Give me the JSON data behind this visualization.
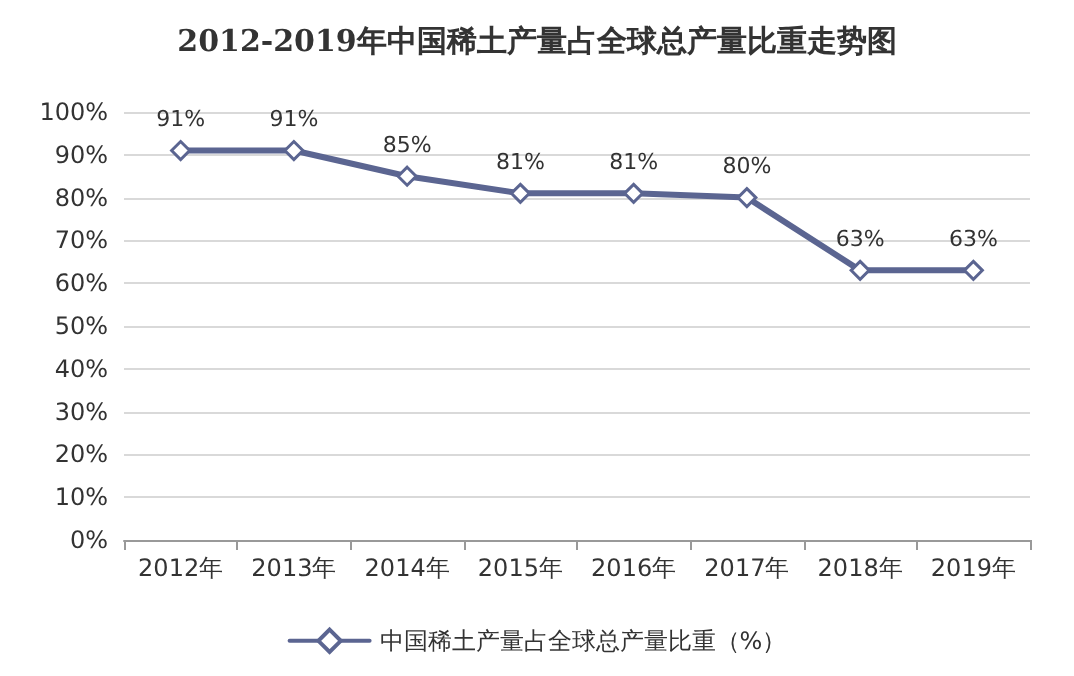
{
  "chart_data": {
    "type": "line",
    "title": "2012-2019年中国稀土产量占全球总产量比重走势图",
    "categories": [
      "2012年",
      "2013年",
      "2014年",
      "2015年",
      "2016年",
      "2017年",
      "2018年",
      "2019年"
    ],
    "series": [
      {
        "name": "中国稀土产量占全球总产量比重（%）",
        "color": "#5b6591",
        "values": [
          91,
          91,
          85,
          81,
          81,
          80,
          63,
          63
        ],
        "value_labels": [
          "91%",
          "91%",
          "85%",
          "81%",
          "81%",
          "80%",
          "63%",
          "63%"
        ]
      }
    ],
    "ylim": [
      0,
      100
    ],
    "yticks": [
      {
        "value": 0,
        "label": "0%"
      },
      {
        "value": 10,
        "label": "10%"
      },
      {
        "value": 20,
        "label": "20%"
      },
      {
        "value": 30,
        "label": "30%"
      },
      {
        "value": 40,
        "label": "40%"
      },
      {
        "value": 50,
        "label": "50%"
      },
      {
        "value": 60,
        "label": "60%"
      },
      {
        "value": 70,
        "label": "70%"
      },
      {
        "value": 80,
        "label": "80%"
      },
      {
        "value": 90,
        "label": "90%"
      },
      {
        "value": 100,
        "label": "100%"
      }
    ],
    "grid": "y",
    "legend": "bottom",
    "marker": "diamond",
    "line_style": "solid"
  }
}
